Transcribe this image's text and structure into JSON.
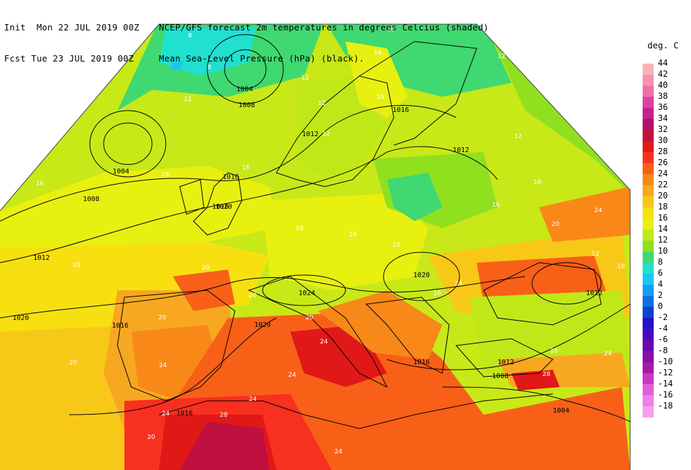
{
  "header": {
    "init_line": "Init  Mon 22 JUL 2019 00Z",
    "fcst_line": "Fcst Tue 23 JUL 2019 00Z",
    "title_line": "NCEP/GFS forecast 2m temperatures in degrees Celcius (shaded)",
    "subtitle_line": "Mean Sea-Level Pressure (hPa) (black)."
  },
  "legend": {
    "unit": "deg. C",
    "items": [
      {
        "label": "44",
        "color": "#f8b4b4"
      },
      {
        "label": "42",
        "color": "#f890b0"
      },
      {
        "label": "40",
        "color": "#f070a8"
      },
      {
        "label": "38",
        "color": "#e040a0"
      },
      {
        "label": "36",
        "color": "#c82090"
      },
      {
        "label": "34",
        "color": "#b01070"
      },
      {
        "label": "32",
        "color": "#c01040"
      },
      {
        "label": "30",
        "color": "#e01818"
      },
      {
        "label": "28",
        "color": "#f83020"
      },
      {
        "label": "26",
        "color": "#f86018"
      },
      {
        "label": "24",
        "color": "#f88818"
      },
      {
        "label": "22",
        "color": "#f8a820"
      },
      {
        "label": "20",
        "color": "#f8c818"
      },
      {
        "label": "18",
        "color": "#f8e010"
      },
      {
        "label": "16",
        "color": "#e8f010"
      },
      {
        "label": "14",
        "color": "#c0e818"
      },
      {
        "label": "12",
        "color": "#90e020"
      },
      {
        "label": "10",
        "color": "#40d870"
      },
      {
        "label": "8",
        "color": "#20e0d0"
      },
      {
        "label": "6",
        "color": "#18c8f0"
      },
      {
        "label": "4",
        "color": "#10a0f0"
      },
      {
        "label": "2",
        "color": "#1070e0"
      },
      {
        "label": "0",
        "color": "#1040d0"
      },
      {
        "label": "-2",
        "color": "#2010c8"
      },
      {
        "label": "-4",
        "color": "#4808c0"
      },
      {
        "label": "-6",
        "color": "#6808b0"
      },
      {
        "label": "-8",
        "color": "#8810a8"
      },
      {
        "label": "-10",
        "color": "#a818a8"
      },
      {
        "label": "-12",
        "color": "#c838c0"
      },
      {
        "label": "-14",
        "color": "#e060d8"
      },
      {
        "label": "-16",
        "color": "#f080e8"
      },
      {
        "label": "-18",
        "color": "#f8a0f0"
      }
    ]
  },
  "map": {
    "isobar_labels": [
      "1004",
      "1008",
      "1016",
      "1012",
      "1016",
      "1012",
      "1004",
      "1008",
      "1016",
      "1020",
      "1012",
      "1020",
      "1016",
      "1020",
      "1024",
      "1020",
      "1012",
      "1016",
      "1012",
      "1008",
      "1016",
      "1004"
    ],
    "temperature_labels": [
      "8",
      "8",
      "12",
      "12",
      "16",
      "16",
      "12",
      "16",
      "12",
      "16",
      "16",
      "16",
      "20",
      "20",
      "16",
      "16",
      "20",
      "20",
      "16",
      "24",
      "20",
      "24",
      "20",
      "24",
      "24",
      "20",
      "24",
      "28",
      "24",
      "16",
      "16",
      "12",
      "16",
      "16",
      "12",
      "12",
      "20",
      "24",
      "16",
      "28",
      "24",
      "24"
    ]
  }
}
